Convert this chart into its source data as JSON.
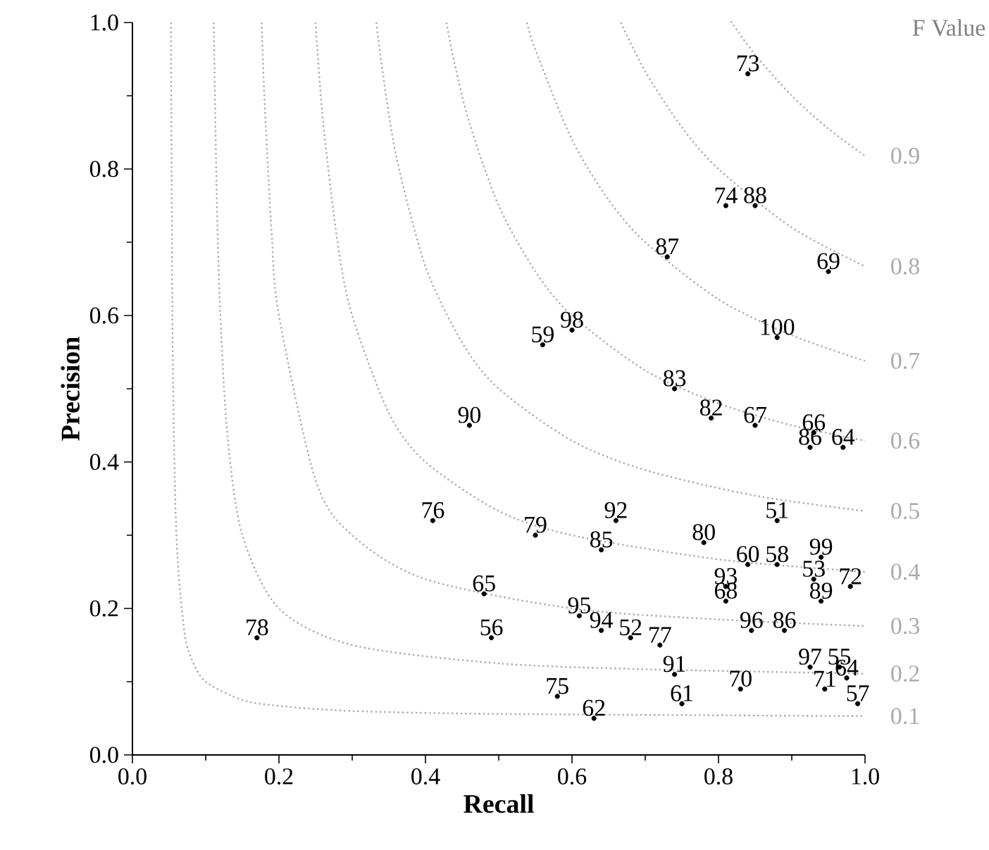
{
  "chart_data": {
    "type": "line",
    "xlabel": "Recall",
    "ylabel": "Precision",
    "xlim": [
      0,
      1
    ],
    "ylim": [
      0,
      1
    ],
    "xticks": [
      {
        "value": 0,
        "label": "0.0"
      },
      {
        "value": 0.2,
        "label": "0.2"
      },
      {
        "value": 0.4,
        "label": "0.4"
      },
      {
        "value": 0.6,
        "label": "0.6"
      },
      {
        "value": 0.8,
        "label": "0.8"
      },
      {
        "value": 1,
        "label": "1.0"
      }
    ],
    "yticks": [
      {
        "value": 0,
        "label": "0.0"
      },
      {
        "value": 0.2,
        "label": "0.2"
      },
      {
        "value": 0.4,
        "label": "0.4"
      },
      {
        "value": 0.6,
        "label": "0.6"
      },
      {
        "value": 0.8,
        "label": "0.8"
      },
      {
        "value": 1,
        "label": "1.0"
      }
    ],
    "grid": false,
    "marker": "none",
    "line_style": "dotted",
    "series": [
      {
        "name": "0.1",
        "color": "#aaaaaa",
        "x": [
          0.0526,
          0.055,
          0.06,
          0.07,
          0.08,
          0.1,
          0.15,
          0.2,
          0.3,
          0.5,
          1
        ],
        "values": [
          1,
          0.55,
          0.3,
          0.175,
          0.133,
          0.1,
          0.075,
          0.067,
          0.06,
          0.056,
          0.053
        ]
      },
      {
        "name": "0.2",
        "color": "#aaaaaa",
        "x": [
          0.111,
          0.115,
          0.12,
          0.13,
          0.15,
          0.2,
          0.3,
          0.5,
          0.7,
          1
        ],
        "values": [
          1,
          0.767,
          0.6,
          0.433,
          0.3,
          0.2,
          0.15,
          0.125,
          0.117,
          0.111
        ]
      },
      {
        "name": "0.3",
        "color": "#aaaaaa",
        "x": [
          0.1765,
          0.18,
          0.19,
          0.2,
          0.25,
          0.3,
          0.4,
          0.6,
          0.8,
          1
        ],
        "values": [
          1,
          0.9,
          0.713,
          0.6,
          0.375,
          0.3,
          0.24,
          0.2,
          0.185,
          0.176
        ]
      },
      {
        "name": "0.4",
        "color": "#aaaaaa",
        "x": [
          0.25,
          0.26,
          0.28,
          0.3,
          0.35,
          0.4,
          0.5,
          0.6,
          0.8,
          1
        ],
        "values": [
          1,
          0.867,
          0.7,
          0.6,
          0.467,
          0.4,
          0.333,
          0.3,
          0.267,
          0.25
        ]
      },
      {
        "name": "0.5",
        "color": "#aaaaaa",
        "x": [
          0.333,
          0.34,
          0.36,
          0.4,
          0.45,
          0.5,
          0.6,
          0.7,
          0.85,
          1
        ],
        "values": [
          1,
          0.944,
          0.818,
          0.667,
          0.563,
          0.5,
          0.429,
          0.389,
          0.354,
          0.333
        ]
      },
      {
        "name": "0.6",
        "color": "#aaaaaa",
        "x": [
          0.4286,
          0.44,
          0.46,
          0.5,
          0.55,
          0.6,
          0.7,
          0.8,
          0.9,
          1
        ],
        "values": [
          1,
          0.943,
          0.863,
          0.75,
          0.66,
          0.6,
          0.525,
          0.48,
          0.45,
          0.429
        ]
      },
      {
        "name": "0.7",
        "color": "#aaaaaa",
        "x": [
          0.5385,
          0.55,
          0.6,
          0.65,
          0.7,
          0.8,
          0.9,
          1
        ],
        "values": [
          1,
          0.963,
          0.84,
          0.758,
          0.7,
          0.622,
          0.573,
          0.538
        ]
      },
      {
        "name": "0.8",
        "color": "#aaaaaa",
        "x": [
          0.6667,
          0.7,
          0.75,
          0.8,
          0.9,
          1
        ],
        "values": [
          1,
          0.933,
          0.857,
          0.8,
          0.72,
          0.667
        ]
      },
      {
        "name": "0.9",
        "color": "#aaaaaa",
        "x": [
          0.818,
          0.82,
          0.85,
          0.9,
          0.95,
          1
        ],
        "values": [
          1,
          0.997,
          0.956,
          0.9,
          0.855,
          0.818
        ]
      },
      {
        "type": "scatter",
        "color": "#000000",
        "x": [
          0.84,
          0.81,
          0.85,
          0.73,
          0.95,
          0.56,
          0.6,
          0.88,
          0.74,
          0.79,
          0.85,
          0.93,
          0.925,
          0.97,
          0.46,
          0.41,
          0.66,
          0.88,
          0.55,
          0.64,
          0.78,
          0.84,
          0.88,
          0.94,
          0.93,
          0.98,
          0.81,
          0.81,
          0.94,
          0.48,
          0.61,
          0.64,
          0.68,
          0.72,
          0.17,
          0.49,
          0.845,
          0.89,
          0.925,
          0.965,
          0.74,
          0.83,
          0.945,
          0.975,
          0.99,
          0.58,
          0.75,
          0.63
        ],
        "values": [
          0.93,
          0.75,
          0.75,
          0.68,
          0.66,
          0.56,
          0.58,
          0.57,
          0.5,
          0.46,
          0.45,
          0.44,
          0.42,
          0.42,
          0.45,
          0.32,
          0.32,
          0.32,
          0.3,
          0.28,
          0.29,
          0.26,
          0.26,
          0.27,
          0.24,
          0.23,
          0.23,
          0.21,
          0.21,
          0.22,
          0.19,
          0.17,
          0.16,
          0.15,
          0.16,
          0.16,
          0.17,
          0.17,
          0.12,
          0.12,
          0.11,
          0.09,
          0.09,
          0.105,
          0.07,
          0.08,
          0.07,
          0.05
        ]
      }
    ],
    "annotations": [
      "F Value",
      {
        "text": "73",
        "x": 0.84,
        "y": 0.93
      },
      {
        "text": "74",
        "x": 0.81,
        "y": 0.75
      },
      {
        "text": "88",
        "x": 0.85,
        "y": 0.75
      },
      {
        "text": "87",
        "x": 0.73,
        "y": 0.68
      },
      {
        "text": "69",
        "x": 0.95,
        "y": 0.66
      },
      {
        "text": "59",
        "x": 0.56,
        "y": 0.56
      },
      {
        "text": "98",
        "x": 0.6,
        "y": 0.58
      },
      {
        "text": "100",
        "x": 0.88,
        "y": 0.57
      },
      {
        "text": "83",
        "x": 0.74,
        "y": 0.5
      },
      {
        "text": "82",
        "x": 0.79,
        "y": 0.46
      },
      {
        "text": "67",
        "x": 0.85,
        "y": 0.45
      },
      {
        "text": "66",
        "x": 0.93,
        "y": 0.44
      },
      {
        "text": "86",
        "x": 0.925,
        "y": 0.42
      },
      {
        "text": "64",
        "x": 0.97,
        "y": 0.42
      },
      {
        "text": "90",
        "x": 0.46,
        "y": 0.45
      },
      {
        "text": "76",
        "x": 0.41,
        "y": 0.32
      },
      {
        "text": "92",
        "x": 0.66,
        "y": 0.32
      },
      {
        "text": "51",
        "x": 0.88,
        "y": 0.32
      },
      {
        "text": "79",
        "x": 0.55,
        "y": 0.3
      },
      {
        "text": "85",
        "x": 0.64,
        "y": 0.28
      },
      {
        "text": "80",
        "x": 0.78,
        "y": 0.29
      },
      {
        "text": "60",
        "x": 0.84,
        "y": 0.26
      },
      {
        "text": "58",
        "x": 0.88,
        "y": 0.26
      },
      {
        "text": "99",
        "x": 0.94,
        "y": 0.27
      },
      {
        "text": "53",
        "x": 0.93,
        "y": 0.24
      },
      {
        "text": "72",
        "x": 0.98,
        "y": 0.23
      },
      {
        "text": "93",
        "x": 0.81,
        "y": 0.23
      },
      {
        "text": "68",
        "x": 0.81,
        "y": 0.21
      },
      {
        "text": "89",
        "x": 0.94,
        "y": 0.21
      },
      {
        "text": "65",
        "x": 0.48,
        "y": 0.22
      },
      {
        "text": "95",
        "x": 0.61,
        "y": 0.19
      },
      {
        "text": "94",
        "x": 0.64,
        "y": 0.17
      },
      {
        "text": "52",
        "x": 0.68,
        "y": 0.16
      },
      {
        "text": "77",
        "x": 0.72,
        "y": 0.15
      },
      {
        "text": "78",
        "x": 0.17,
        "y": 0.16
      },
      {
        "text": "56",
        "x": 0.49,
        "y": 0.16
      },
      {
        "text": "96",
        "x": 0.845,
        "y": 0.17
      },
      {
        "text": "86",
        "x": 0.89,
        "y": 0.17
      },
      {
        "text": "97",
        "x": 0.925,
        "y": 0.12
      },
      {
        "text": "55",
        "x": 0.965,
        "y": 0.12
      },
      {
        "text": "91",
        "x": 0.74,
        "y": 0.11
      },
      {
        "text": "70",
        "x": 0.83,
        "y": 0.09
      },
      {
        "text": "71",
        "x": 0.945,
        "y": 0.09
      },
      {
        "text": "64",
        "x": 0.975,
        "y": 0.105
      },
      {
        "text": "57",
        "x": 0.99,
        "y": 0.07
      },
      {
        "text": "75",
        "x": 0.58,
        "y": 0.08
      },
      {
        "text": "61",
        "x": 0.75,
        "y": 0.07
      },
      {
        "text": "62",
        "x": 0.63,
        "y": 0.05
      }
    ]
  }
}
